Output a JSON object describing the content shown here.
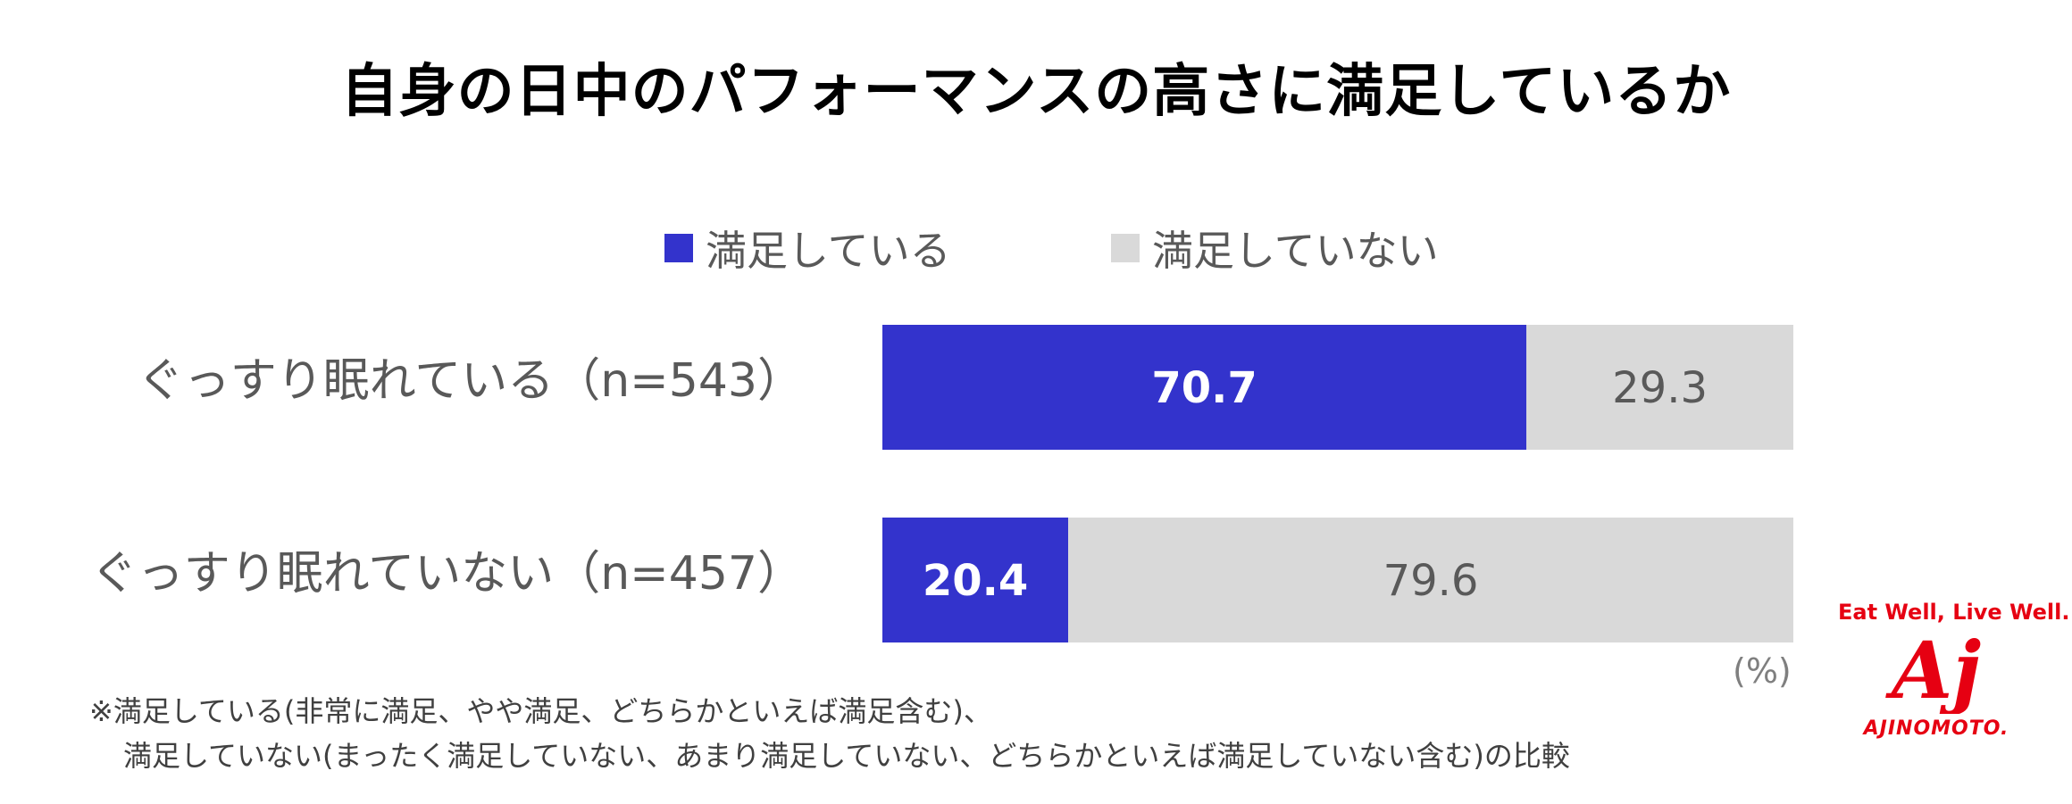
{
  "chart_data": {
    "type": "bar",
    "orientation": "horizontal",
    "stacked": true,
    "title": "自身の日中のパフォーマンスの高さに満足しているか",
    "categories": [
      "ぐっすり眠れている（n=543）",
      "ぐっすり眠れていない（n=457）"
    ],
    "series": [
      {
        "name": "満足している",
        "color": "#3333cc",
        "values": [
          70.7,
          20.4
        ]
      },
      {
        "name": "満足していない",
        "color": "#d9d9d9",
        "values": [
          29.3,
          79.6
        ]
      }
    ],
    "xlim": [
      0,
      100
    ],
    "unit_label": "(%)",
    "legend_position": "top-center"
  },
  "footnote": {
    "line1": "※満足している(非常に満足、やや満足、どちらかといえば満足含む)、",
    "line2": "満足していない(まったく満足していない、あまり満足していない、どちらかといえば満足していない含む)の比較"
  },
  "logo": {
    "tagline": "Eat Well, Live Well.",
    "mark": "Aj",
    "brand": "AJINOMOTO."
  }
}
